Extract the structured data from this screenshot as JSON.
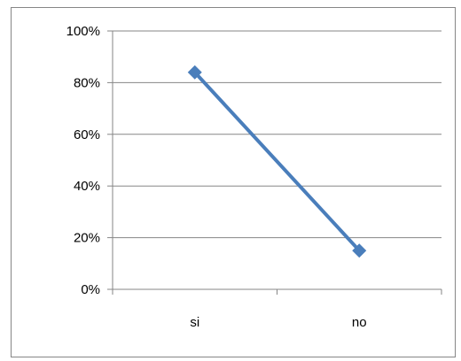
{
  "chart_data": {
    "type": "line",
    "categories": [
      "si",
      "no"
    ],
    "series": [
      {
        "values": [
          84,
          15
        ],
        "color": "#4a7ebb",
        "marker": "diamond"
      }
    ],
    "y_ticks": [
      "0%",
      "20%",
      "40%",
      "60%",
      "80%",
      "100%"
    ],
    "ylim": [
      0,
      100
    ],
    "y_unit": "%",
    "grid": "horizontal",
    "legend": "none"
  }
}
